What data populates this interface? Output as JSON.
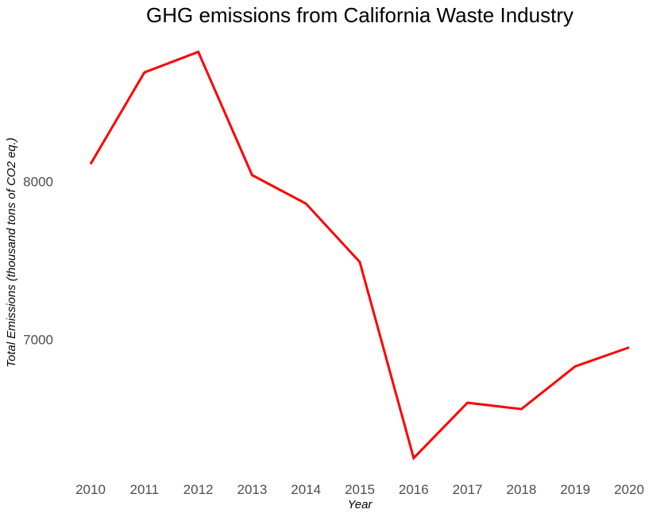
{
  "chart_data": {
    "type": "line",
    "title": "GHG emissions from California Waste Industry",
    "xlabel": "Year",
    "ylabel": "Total Emissions (thousand tons of CO2 eq.)",
    "x": [
      2010,
      2011,
      2012,
      2013,
      2014,
      2015,
      2016,
      2017,
      2018,
      2019,
      2020
    ],
    "series": [
      {
        "values": [
          8110,
          8690,
          8820,
          8040,
          7860,
          7490,
          6250,
          6600,
          6560,
          6830,
          6950
        ],
        "color": "#ff0000"
      }
    ],
    "xlim": [
      2010,
      2020
    ],
    "ylim": [
      6200,
      8900
    ],
    "yticks": [
      7000,
      8000
    ],
    "grid": false,
    "legend": "none"
  }
}
